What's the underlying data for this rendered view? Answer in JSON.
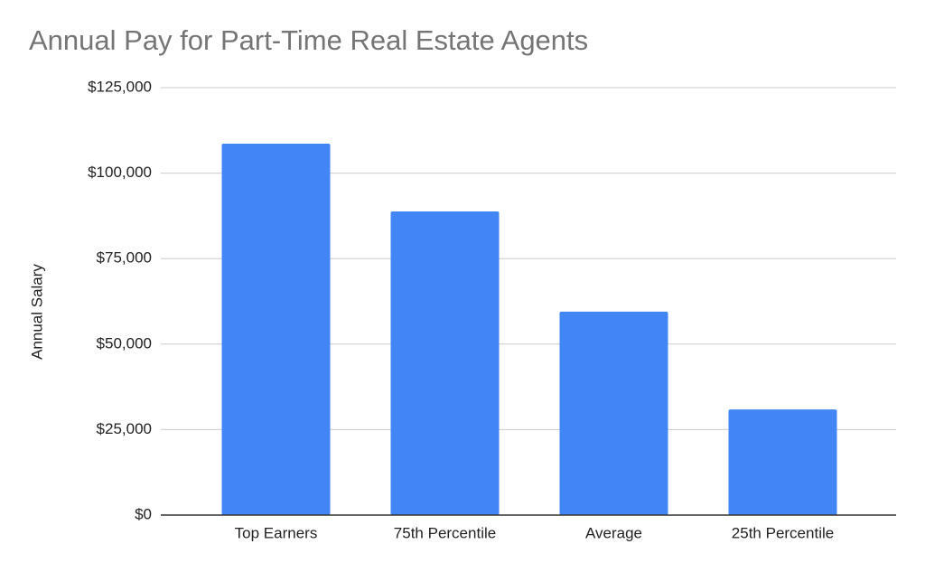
{
  "chart_data": {
    "type": "bar",
    "title": "Annual Pay for Part-Time Real Estate Agents",
    "y_label": "Annual Salary",
    "categories": [
      "Top Earners",
      "75th Percentile",
      "Average",
      "25th Percentile"
    ],
    "values": [
      108600,
      88800,
      59500,
      30900
    ],
    "color": "#4285f4",
    "ylim": [
      0,
      125000
    ],
    "yticks": [
      {
        "value": 0,
        "label": "$0"
      },
      {
        "value": 25000,
        "label": "$25,000"
      },
      {
        "value": 50000,
        "label": "$50,000"
      },
      {
        "value": 75000,
        "label": "$75,000"
      },
      {
        "value": 100000,
        "label": "$100,000"
      },
      {
        "value": 125000,
        "label": "$125,000"
      }
    ],
    "grid": true
  }
}
